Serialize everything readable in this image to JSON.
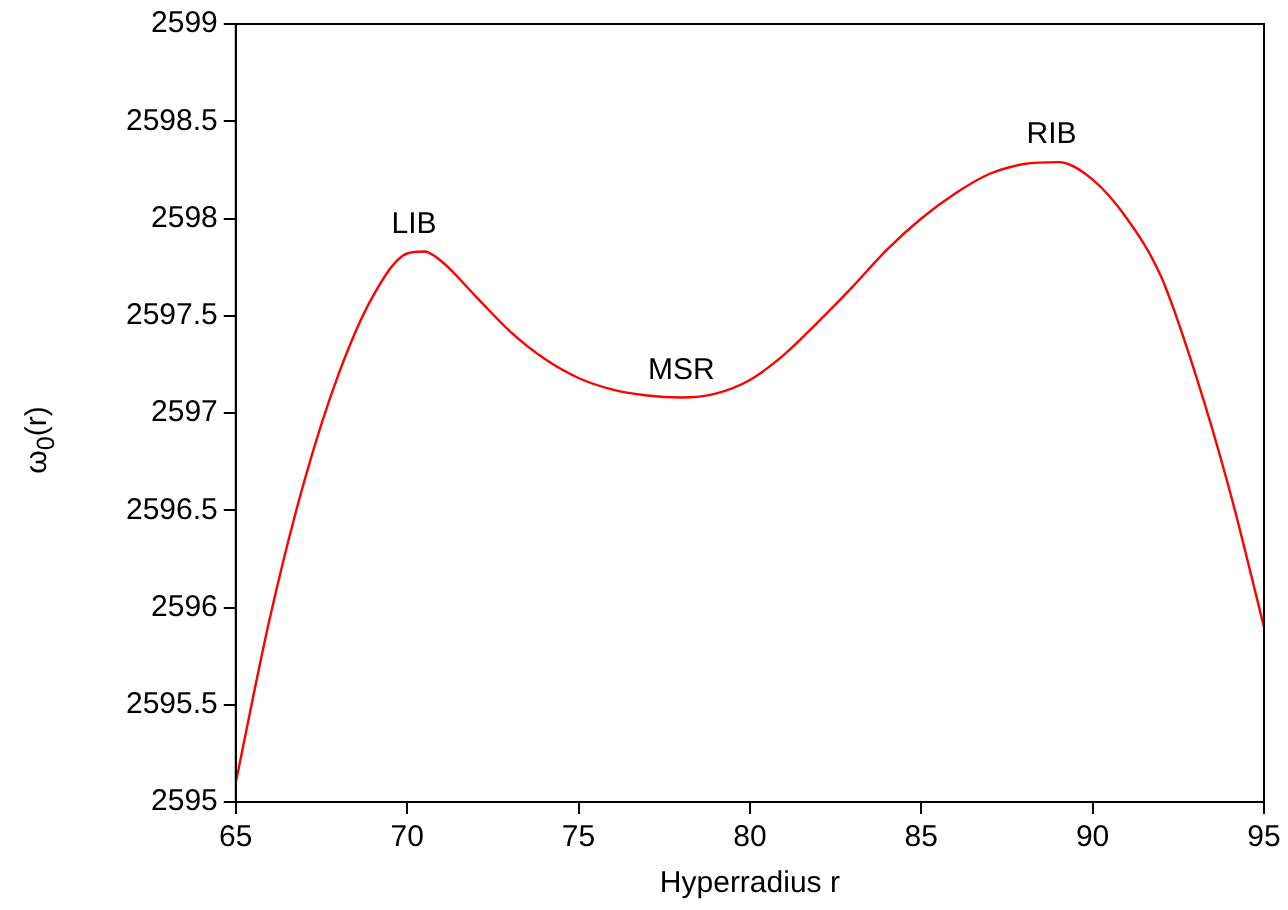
{
  "chart_data": {
    "type": "line",
    "xlabel": "Hyperradius r",
    "ylabel": "ω$_{0}$(r)",
    "x": [
      65,
      66,
      67,
      68,
      69,
      70,
      70.5,
      71,
      72,
      73,
      74,
      75,
      76,
      77,
      78,
      79,
      80,
      81,
      82,
      83,
      84,
      85,
      86,
      87,
      88,
      89,
      90,
      91,
      92,
      93,
      94,
      95
    ],
    "series": [
      {
        "color": "#ff0000",
        "values": [
          2595.1,
          2595.95,
          2596.65,
          2597.2,
          2597.6,
          2597.82,
          2597.83,
          2597.78,
          2597.6,
          2597.42,
          2597.28,
          2597.18,
          2597.12,
          2597.09,
          2597.08,
          2597.1,
          2597.17,
          2597.3,
          2597.47,
          2597.65,
          2597.84,
          2598.0,
          2598.13,
          2598.23,
          2598.28,
          2598.29,
          2598.2,
          2598.0,
          2597.7,
          2597.2,
          2596.6,
          2595.9
        ]
      }
    ],
    "xlim": [
      65,
      95
    ],
    "xticks": [
      65,
      70,
      75,
      80,
      85,
      90,
      95
    ],
    "ylim": [
      2595,
      2599
    ],
    "yticks": [
      2595,
      2595.5,
      2596,
      2596.5,
      2597,
      2597.5,
      2598,
      2598.5,
      2599
    ],
    "annotations": [
      {
        "text": "LIB",
        "x": 70.2,
        "y": 2597.83
      },
      {
        "text": "MSR",
        "x": 78,
        "y": 2597.08
      },
      {
        "text": "RIB",
        "x": 88.8,
        "y": 2598.29
      }
    ],
    "grid": false,
    "legend": false,
    "marker": "none",
    "line_style": "solid"
  }
}
